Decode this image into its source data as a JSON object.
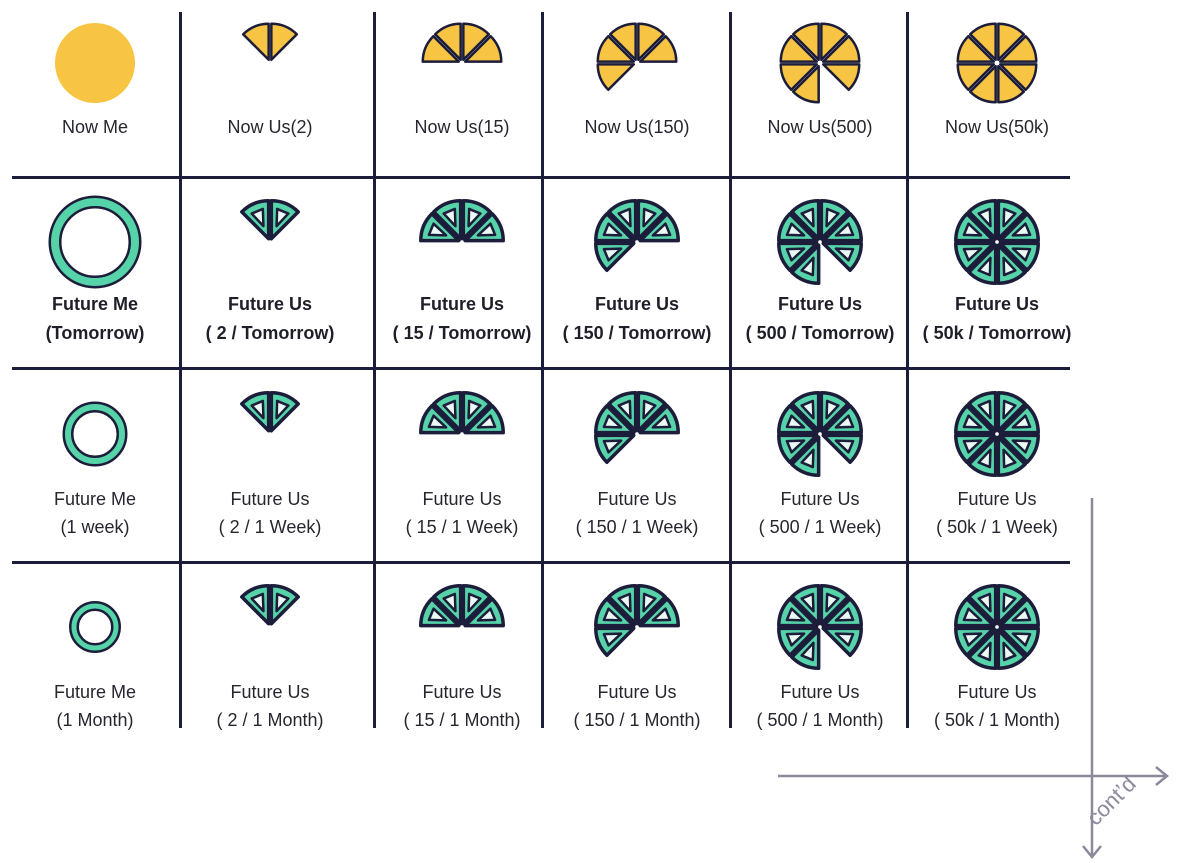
{
  "colors": {
    "now": "#f7c543",
    "future": "#56d3a9",
    "outline": "#1c1d3a",
    "grid": "#1c1d3a",
    "arrow": "#8a8a9c"
  },
  "rows": [
    {
      "style": "now",
      "cells": [
        {
          "label": [
            "Now Me"
          ],
          "icon": "disc"
        },
        {
          "label": [
            "Now Us(2)"
          ],
          "icon": "pie",
          "slices": [
            7,
            0
          ]
        },
        {
          "label": [
            "Now Us(15)"
          ],
          "icon": "pie",
          "slices": [
            6,
            7,
            0,
            1
          ]
        },
        {
          "label": [
            "Now Us(150)"
          ],
          "icon": "pie",
          "slices": [
            5,
            6,
            7,
            0,
            1
          ]
        },
        {
          "label": [
            "Now Us(500)"
          ],
          "icon": "pie",
          "slices": [
            4,
            5,
            6,
            7,
            0,
            1,
            2
          ]
        },
        {
          "label": [
            "Now Us(50k)"
          ],
          "icon": "pie",
          "slices": [
            0,
            1,
            2,
            3,
            4,
            5,
            6,
            7
          ]
        }
      ]
    },
    {
      "style": "future",
      "cells": [
        {
          "label": [
            "Future Me",
            "(Tomorrow)"
          ],
          "icon": "ring",
          "ring_size": "large"
        },
        {
          "label": [
            "Future Us",
            "( 2 / Tomorrow)"
          ],
          "icon": "pie",
          "slices": [
            7,
            0
          ]
        },
        {
          "label": [
            "Future Us",
            "( 15 / Tomorrow)"
          ],
          "icon": "pie",
          "slices": [
            6,
            7,
            0,
            1
          ]
        },
        {
          "label": [
            "Future Us",
            "( 150 / Tomorrow)"
          ],
          "icon": "pie",
          "slices": [
            5,
            6,
            7,
            0,
            1
          ]
        },
        {
          "label": [
            "Future Us",
            "( 500 / Tomorrow)"
          ],
          "icon": "pie",
          "slices": [
            4,
            5,
            6,
            7,
            0,
            1,
            2
          ]
        },
        {
          "label": [
            "Future Us",
            "( 50k / Tomorrow)"
          ],
          "icon": "pie",
          "slices": [
            0,
            1,
            2,
            3,
            4,
            5,
            6,
            7
          ]
        }
      ]
    },
    {
      "style": "future",
      "cells": [
        {
          "label": [
            "Future Me",
            "(1 week)"
          ],
          "icon": "ring",
          "ring_size": "medium"
        },
        {
          "label": [
            "Future Us",
            "( 2 / 1 Week)"
          ],
          "icon": "pie",
          "slices": [
            7,
            0
          ]
        },
        {
          "label": [
            "Future Us",
            "( 15 / 1 Week)"
          ],
          "icon": "pie",
          "slices": [
            6,
            7,
            0,
            1
          ]
        },
        {
          "label": [
            "Future Us",
            "( 150 / 1 Week)"
          ],
          "icon": "pie",
          "slices": [
            5,
            6,
            7,
            0,
            1
          ]
        },
        {
          "label": [
            "Future Us",
            "( 500 / 1 Week)"
          ],
          "icon": "pie",
          "slices": [
            4,
            5,
            6,
            7,
            0,
            1,
            2
          ]
        },
        {
          "label": [
            "Future Us",
            "( 50k / 1 Week)"
          ],
          "icon": "pie",
          "slices": [
            0,
            1,
            2,
            3,
            4,
            5,
            6,
            7
          ]
        }
      ]
    },
    {
      "style": "future",
      "cells": [
        {
          "label": [
            "Future Me",
            "(1 Month)"
          ],
          "icon": "ring",
          "ring_size": "small"
        },
        {
          "label": [
            "Future Us",
            "( 2 / 1 Month)"
          ],
          "icon": "pie",
          "slices": [
            7,
            0
          ]
        },
        {
          "label": [
            "Future Us",
            "( 15 / 1 Month)"
          ],
          "icon": "pie",
          "slices": [
            6,
            7,
            0,
            1
          ]
        },
        {
          "label": [
            "Future Us",
            "( 150 / 1 Month)"
          ],
          "icon": "pie",
          "slices": [
            5,
            6,
            7,
            0,
            1
          ]
        },
        {
          "label": [
            "Future Us",
            "( 500 / 1 Month)"
          ],
          "icon": "pie",
          "slices": [
            4,
            5,
            6,
            7,
            0,
            1,
            2
          ]
        },
        {
          "label": [
            "Future Us",
            "( 50k / 1 Month)"
          ],
          "icon": "pie",
          "slices": [
            0,
            1,
            2,
            3,
            4,
            5,
            6,
            7
          ]
        }
      ]
    }
  ],
  "continuation": {
    "label": "cont’d"
  }
}
